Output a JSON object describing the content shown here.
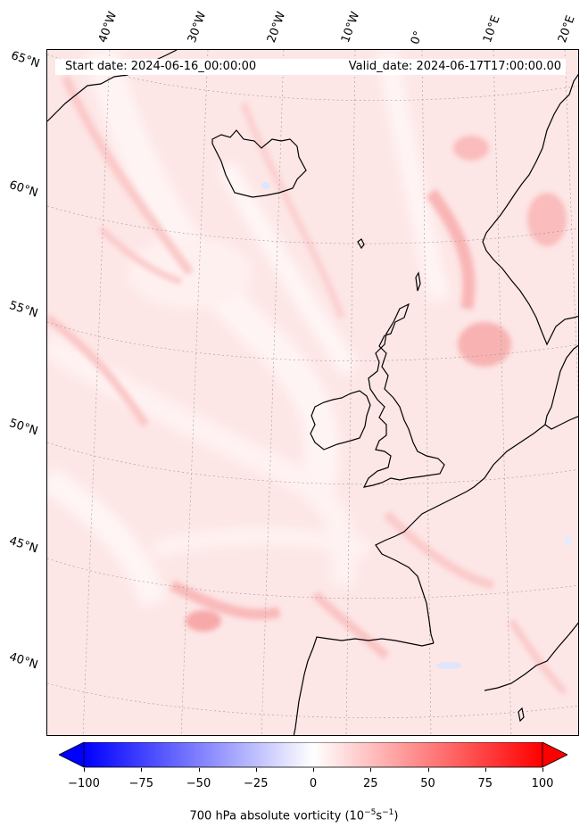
{
  "map": {
    "start_date": "Start date: 2024-06-16_00:00:00",
    "valid_date": "Valid_date: 2024-06-17T17:00:00.00",
    "longitude_labels": [
      "40°W",
      "30°W",
      "20°W",
      "10°W",
      "0°",
      "10°E",
      "20°E"
    ],
    "latitude_labels": [
      "65°N",
      "60°N",
      "55°N",
      "50°N",
      "45°N",
      "40°N"
    ],
    "region": "North Atlantic, Iceland, British Isles, Scandinavia, Iberia",
    "variable": "700 hPa absolute vorticity"
  },
  "colorbar": {
    "min": -100,
    "max": 100,
    "tick_labels": [
      "−100",
      "−75",
      "−50",
      "−25",
      "0",
      "25",
      "50",
      "75",
      "100"
    ],
    "label_prefix": "700 hPa absolute vorticity (10",
    "label_exp1": "−5",
    "label_mid": "s",
    "label_exp2": "−1",
    "label_suffix": ")",
    "colors": {
      "low": "#0000ff",
      "mid": "#ffffff",
      "high": "#ff0000"
    }
  }
}
